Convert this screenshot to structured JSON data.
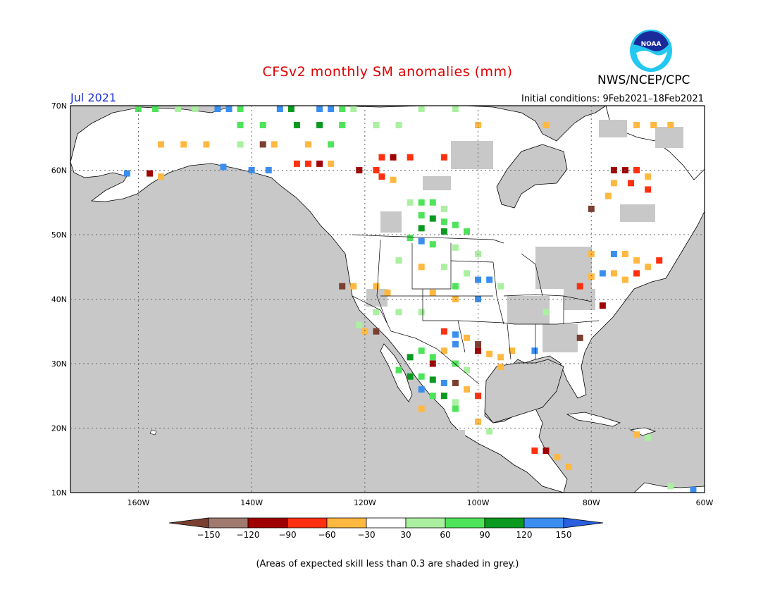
{
  "header": {
    "title": "CFSv2 monthly SM anomalies (mm)",
    "period": "Jul 2021",
    "initial_conditions": "Initial conditions: 9Feb2021–18Feb2021",
    "agency": "NWS/NCEP/CPC",
    "logo_text": "NOAA"
  },
  "map": {
    "lon_range": [
      -172,
      -60
    ],
    "lat_range": [
      10,
      70
    ],
    "lat_labels": [
      "70N",
      "60N",
      "50N",
      "40N",
      "30N",
      "20N",
      "10N"
    ],
    "lon_labels": [
      "160W",
      "140W",
      "120W",
      "100W",
      "80W",
      "60W"
    ],
    "lat_values": [
      70,
      60,
      50,
      40,
      30,
      20,
      10
    ],
    "lon_values": [
      -160,
      -140,
      -120,
      -100,
      -80,
      -60
    ],
    "low_skill_color": "#c8c8c8",
    "land_color": "#ffffff",
    "ocean_color": "#c8c8c8",
    "anomaly_cells": [
      {
        "lon": -160,
        "lat": 69.5,
        "cat": "g90"
      },
      {
        "lon": -157,
        "lat": 69.5,
        "cat": "g90"
      },
      {
        "lon": -153,
        "lat": 69.5,
        "cat": "g60"
      },
      {
        "lon": -150,
        "lat": 69.5,
        "cat": "g60"
      },
      {
        "lon": -146,
        "lat": 69.5,
        "cat": "b120"
      },
      {
        "lon": -144,
        "lat": 69.5,
        "cat": "b120"
      },
      {
        "lon": -142,
        "lat": 69.5,
        "cat": "g90"
      },
      {
        "lon": -135,
        "lat": 69.5,
        "cat": "b120"
      },
      {
        "lon": -133,
        "lat": 69.5,
        "cat": "g120"
      },
      {
        "lon": -128,
        "lat": 69.5,
        "cat": "b120"
      },
      {
        "lon": -126,
        "lat": 69.5,
        "cat": "b120"
      },
      {
        "lon": -124,
        "lat": 69.5,
        "cat": "g90"
      },
      {
        "lon": -122,
        "lat": 69.5,
        "cat": "g60"
      },
      {
        "lon": -110,
        "lat": 69.5,
        "cat": "g60"
      },
      {
        "lon": -104,
        "lat": 69.5,
        "cat": "g60"
      },
      {
        "lon": -142,
        "lat": 67,
        "cat": "g90"
      },
      {
        "lon": -138,
        "lat": 67,
        "cat": "g90"
      },
      {
        "lon": -132,
        "lat": 67,
        "cat": "g120"
      },
      {
        "lon": -128,
        "lat": 67,
        "cat": "g120"
      },
      {
        "lon": -124,
        "lat": 67,
        "cat": "g90"
      },
      {
        "lon": -118,
        "lat": 67,
        "cat": "g60"
      },
      {
        "lon": -114,
        "lat": 67,
        "cat": "g60"
      },
      {
        "lon": -100,
        "lat": 67,
        "cat": "o30"
      },
      {
        "lon": -88,
        "lat": 67,
        "cat": "o30"
      },
      {
        "lon": -72,
        "lat": 67,
        "cat": "o30"
      },
      {
        "lon": -69,
        "lat": 67,
        "cat": "o30"
      },
      {
        "lon": -66,
        "lat": 67,
        "cat": "o30"
      },
      {
        "lon": -156,
        "lat": 64,
        "cat": "o30"
      },
      {
        "lon": -152,
        "lat": 64,
        "cat": "o30"
      },
      {
        "lon": -148,
        "lat": 64,
        "cat": "o30"
      },
      {
        "lon": -142,
        "lat": 64,
        "cat": "g60"
      },
      {
        "lon": -138,
        "lat": 64,
        "cat": "br120"
      },
      {
        "lon": -136,
        "lat": 64,
        "cat": "o30"
      },
      {
        "lon": -130,
        "lat": 64,
        "cat": "o30"
      },
      {
        "lon": -126,
        "lat": 64,
        "cat": "g90"
      },
      {
        "lon": -117,
        "lat": 62,
        "cat": "r60"
      },
      {
        "lon": -115,
        "lat": 62,
        "cat": "dr90"
      },
      {
        "lon": -112,
        "lat": 62,
        "cat": "r60"
      },
      {
        "lon": -106,
        "lat": 62,
        "cat": "r60"
      },
      {
        "lon": -132,
        "lat": 61,
        "cat": "r60"
      },
      {
        "lon": -130,
        "lat": 61,
        "cat": "r60"
      },
      {
        "lon": -128,
        "lat": 61,
        "cat": "dr90"
      },
      {
        "lon": -126,
        "lat": 61,
        "cat": "o30"
      },
      {
        "lon": -121,
        "lat": 60,
        "cat": "dr90"
      },
      {
        "lon": -118,
        "lat": 60,
        "cat": "r60"
      },
      {
        "lon": -117,
        "lat": 59,
        "cat": "r60"
      },
      {
        "lon": -115,
        "lat": 58.5,
        "cat": "o30"
      },
      {
        "lon": -145,
        "lat": 60.5,
        "cat": "b120"
      },
      {
        "lon": -140,
        "lat": 60,
        "cat": "b120"
      },
      {
        "lon": -137,
        "lat": 60,
        "cat": "b120"
      },
      {
        "lon": -162,
        "lat": 59.5,
        "cat": "b120"
      },
      {
        "lon": -158,
        "lat": 59.5,
        "cat": "dr90"
      },
      {
        "lon": -156,
        "lat": 59,
        "cat": "o30"
      },
      {
        "lon": -76,
        "lat": 60,
        "cat": "dr90"
      },
      {
        "lon": -74,
        "lat": 60,
        "cat": "dr90"
      },
      {
        "lon": -72,
        "lat": 60,
        "cat": "r60"
      },
      {
        "lon": -70,
        "lat": 59,
        "cat": "o30"
      },
      {
        "lon": -76,
        "lat": 58,
        "cat": "o30"
      },
      {
        "lon": -73,
        "lat": 58,
        "cat": "r60"
      },
      {
        "lon": -70,
        "lat": 57,
        "cat": "r60"
      },
      {
        "lon": -77,
        "lat": 56,
        "cat": "o30"
      },
      {
        "lon": -80,
        "lat": 54,
        "cat": "br120"
      },
      {
        "lon": -112,
        "lat": 55,
        "cat": "g60"
      },
      {
        "lon": -110,
        "lat": 55,
        "cat": "g90"
      },
      {
        "lon": -108,
        "lat": 55,
        "cat": "g90"
      },
      {
        "lon": -106,
        "lat": 54,
        "cat": "g60"
      },
      {
        "lon": -110,
        "lat": 53,
        "cat": "g90"
      },
      {
        "lon": -108,
        "lat": 52.5,
        "cat": "g120"
      },
      {
        "lon": -106,
        "lat": 52,
        "cat": "g90"
      },
      {
        "lon": -104,
        "lat": 51.5,
        "cat": "g90"
      },
      {
        "lon": -110,
        "lat": 51,
        "cat": "g120"
      },
      {
        "lon": -106,
        "lat": 50.5,
        "cat": "g120"
      },
      {
        "lon": -102,
        "lat": 50.5,
        "cat": "g90"
      },
      {
        "lon": -112,
        "lat": 49.5,
        "cat": "g90"
      },
      {
        "lon": -110,
        "lat": 49,
        "cat": "b120"
      },
      {
        "lon": -108,
        "lat": 48.5,
        "cat": "g90"
      },
      {
        "lon": -104,
        "lat": 48,
        "cat": "g60"
      },
      {
        "lon": -100,
        "lat": 47,
        "cat": "g60"
      },
      {
        "lon": -114,
        "lat": 46,
        "cat": "g60"
      },
      {
        "lon": -110,
        "lat": 45,
        "cat": "o30"
      },
      {
        "lon": -106,
        "lat": 45,
        "cat": "g60"
      },
      {
        "lon": -102,
        "lat": 44,
        "cat": "g60"
      },
      {
        "lon": -100,
        "lat": 43,
        "cat": "b120"
      },
      {
        "lon": -98,
        "lat": 43,
        "cat": "b120"
      },
      {
        "lon": -104,
        "lat": 42,
        "cat": "g90"
      },
      {
        "lon": -96,
        "lat": 42,
        "cat": "g60"
      },
      {
        "lon": -124,
        "lat": 42,
        "cat": "br120"
      },
      {
        "lon": -122,
        "lat": 42,
        "cat": "o30"
      },
      {
        "lon": -118,
        "lat": 42,
        "cat": "o30"
      },
      {
        "lon": -116,
        "lat": 41,
        "cat": "o30"
      },
      {
        "lon": -108,
        "lat": 41,
        "cat": "o30"
      },
      {
        "lon": -104,
        "lat": 40,
        "cat": "o30"
      },
      {
        "lon": -100,
        "lat": 40,
        "cat": "b120"
      },
      {
        "lon": -118,
        "lat": 38,
        "cat": "g60"
      },
      {
        "lon": -114,
        "lat": 38,
        "cat": "g60"
      },
      {
        "lon": -110,
        "lat": 38,
        "cat": "g60"
      },
      {
        "lon": -121,
        "lat": 36,
        "cat": "g60"
      },
      {
        "lon": -120,
        "lat": 35,
        "cat": "o30"
      },
      {
        "lon": -118,
        "lat": 35,
        "cat": "br120"
      },
      {
        "lon": -106,
        "lat": 35,
        "cat": "r60"
      },
      {
        "lon": -104,
        "lat": 34.5,
        "cat": "b120"
      },
      {
        "lon": -102,
        "lat": 34,
        "cat": "o30"
      },
      {
        "lon": -100,
        "lat": 33,
        "cat": "br120"
      },
      {
        "lon": -100,
        "lat": 32,
        "cat": "dr90"
      },
      {
        "lon": -98,
        "lat": 31.5,
        "cat": "o30"
      },
      {
        "lon": -96,
        "lat": 31,
        "cat": "o30"
      },
      {
        "lon": -94,
        "lat": 32,
        "cat": "o30"
      },
      {
        "lon": -96,
        "lat": 29.5,
        "cat": "o30"
      },
      {
        "lon": -104,
        "lat": 33,
        "cat": "b120"
      },
      {
        "lon": -106,
        "lat": 32,
        "cat": "o30"
      },
      {
        "lon": -110,
        "lat": 32,
        "cat": "g90"
      },
      {
        "lon": -112,
        "lat": 31,
        "cat": "g120"
      },
      {
        "lon": -108,
        "lat": 31,
        "cat": "g90"
      },
      {
        "lon": -108,
        "lat": 30,
        "cat": "dr90"
      },
      {
        "lon": -104,
        "lat": 30,
        "cat": "g90"
      },
      {
        "lon": -102,
        "lat": 29,
        "cat": "g60"
      },
      {
        "lon": -114,
        "lat": 29,
        "cat": "g90"
      },
      {
        "lon": -112,
        "lat": 28,
        "cat": "g120"
      },
      {
        "lon": -110,
        "lat": 28,
        "cat": "g90"
      },
      {
        "lon": -108,
        "lat": 27.5,
        "cat": "g120"
      },
      {
        "lon": -106,
        "lat": 27,
        "cat": "b120"
      },
      {
        "lon": -104,
        "lat": 27,
        "cat": "br120"
      },
      {
        "lon": -102,
        "lat": 26,
        "cat": "o30"
      },
      {
        "lon": -110,
        "lat": 26,
        "cat": "b120"
      },
      {
        "lon": -108,
        "lat": 25,
        "cat": "g90"
      },
      {
        "lon": -106,
        "lat": 25,
        "cat": "g120"
      },
      {
        "lon": -104,
        "lat": 24,
        "cat": "g60"
      },
      {
        "lon": -100,
        "lat": 25,
        "cat": "r60"
      },
      {
        "lon": -110,
        "lat": 23,
        "cat": "o30"
      },
      {
        "lon": -104,
        "lat": 23,
        "cat": "g90"
      },
      {
        "lon": -100,
        "lat": 21,
        "cat": "o30"
      },
      {
        "lon": -98,
        "lat": 19.5,
        "cat": "g60"
      },
      {
        "lon": -82,
        "lat": 42,
        "cat": "r60"
      },
      {
        "lon": -80,
        "lat": 43.5,
        "cat": "o30"
      },
      {
        "lon": -78,
        "lat": 44,
        "cat": "b120"
      },
      {
        "lon": -76,
        "lat": 44,
        "cat": "o30"
      },
      {
        "lon": -74,
        "lat": 43,
        "cat": "o30"
      },
      {
        "lon": -72,
        "lat": 44,
        "cat": "r60"
      },
      {
        "lon": -70,
        "lat": 45,
        "cat": "o30"
      },
      {
        "lon": -68,
        "lat": 46,
        "cat": "r60"
      },
      {
        "lon": -76,
        "lat": 47,
        "cat": "b120"
      },
      {
        "lon": -74,
        "lat": 47,
        "cat": "o30"
      },
      {
        "lon": -72,
        "lat": 46,
        "cat": "o30"
      },
      {
        "lon": -80,
        "lat": 47,
        "cat": "o30"
      },
      {
        "lon": -78,
        "lat": 39,
        "cat": "dr90"
      },
      {
        "lon": -82,
        "lat": 34,
        "cat": "br120"
      },
      {
        "lon": -88,
        "lat": 38,
        "cat": "g60"
      },
      {
        "lon": -90,
        "lat": 32,
        "cat": "b120"
      },
      {
        "lon": -90,
        "lat": 16.5,
        "cat": "r60"
      },
      {
        "lon": -88,
        "lat": 16.5,
        "cat": "dr90"
      },
      {
        "lon": -86,
        "lat": 15.5,
        "cat": "o30"
      },
      {
        "lon": -84,
        "lat": 14,
        "cat": "o30"
      },
      {
        "lon": -72,
        "lat": 19,
        "cat": "o30"
      },
      {
        "lon": -70,
        "lat": 18.5,
        "cat": "g60"
      },
      {
        "lon": -66,
        "lat": 11,
        "cat": "g60"
      },
      {
        "lon": -62,
        "lat": 10.4,
        "cat": "b120"
      }
    ]
  },
  "legend": {
    "colors": [
      "#7b3f30",
      "#a07a6f",
      "#a00000",
      "#ff3010",
      "#ffb840",
      "#ffffff",
      "#aaf0a0",
      "#4ee45a",
      "#0a9a20",
      "#3a8ef0",
      "#2a60e0"
    ],
    "labels": [
      "−150",
      "−120",
      "−90",
      "−60",
      "−30",
      "30",
      "60",
      "90",
      "120",
      "150"
    ],
    "categories": {
      "br120": "#7b3f30",
      "bm": "#a07a6f",
      "dr90": "#a00000",
      "r60": "#ff3010",
      "o30": "#ffb840",
      "g60": "#aaf0a0",
      "g90": "#4ee45a",
      "g120": "#0a9a20",
      "b120": "#3a8ef0"
    }
  },
  "footer": {
    "note": "(Areas of expected skill less than 0.3 are shaded in grey.)"
  }
}
